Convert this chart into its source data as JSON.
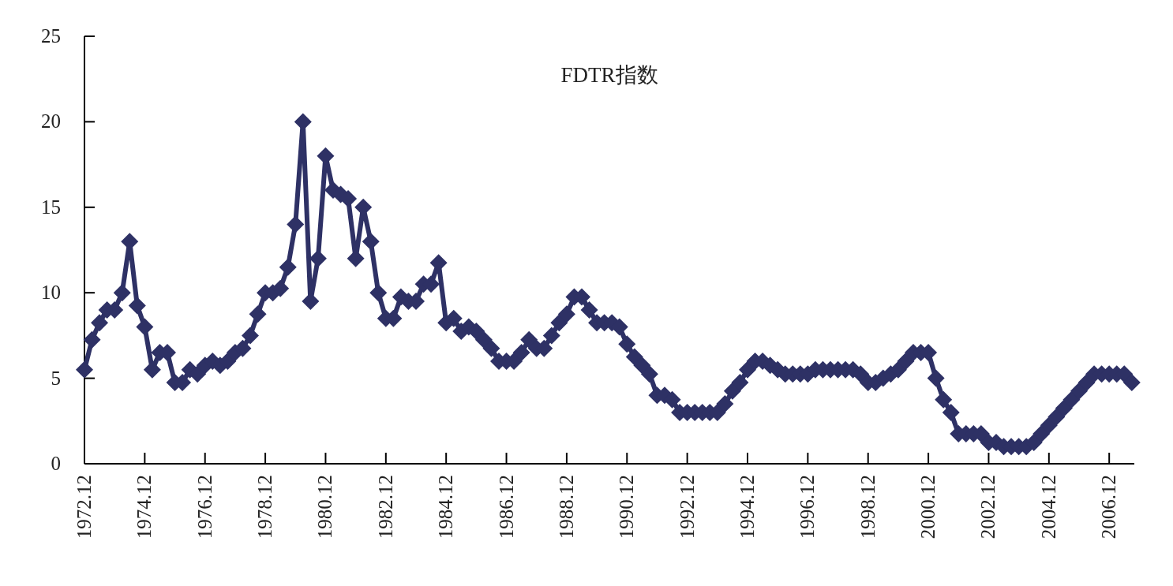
{
  "chart_data": {
    "type": "line",
    "title": "FDTR指数",
    "x": [
      "1972-12",
      "1973-03",
      "1973-06",
      "1973-09",
      "1973-12",
      "1974-03",
      "1974-06",
      "1974-09",
      "1974-12",
      "1975-03",
      "1975-06",
      "1975-09",
      "1975-12",
      "1976-03",
      "1976-06",
      "1976-09",
      "1976-12",
      "1977-03",
      "1977-06",
      "1977-09",
      "1977-12",
      "1978-03",
      "1978-06",
      "1978-09",
      "1978-12",
      "1979-03",
      "1979-06",
      "1979-09",
      "1979-12",
      "1980-03",
      "1980-06",
      "1980-09",
      "1980-12",
      "1981-03",
      "1981-06",
      "1981-09",
      "1981-12",
      "1982-03",
      "1982-06",
      "1982-09",
      "1982-12",
      "1983-03",
      "1983-06",
      "1983-09",
      "1983-12",
      "1984-03",
      "1984-06",
      "1984-09",
      "1984-12",
      "1985-03",
      "1985-06",
      "1985-09",
      "1985-12",
      "1986-03",
      "1986-06",
      "1986-09",
      "1986-12",
      "1987-03",
      "1987-06",
      "1987-09",
      "1987-12",
      "1988-03",
      "1988-06",
      "1988-09",
      "1988-12",
      "1989-03",
      "1989-06",
      "1989-09",
      "1989-12",
      "1990-03",
      "1990-06",
      "1990-09",
      "1990-12",
      "1991-03",
      "1991-06",
      "1991-09",
      "1991-12",
      "1992-03",
      "1992-06",
      "1992-09",
      "1992-12",
      "1993-03",
      "1993-06",
      "1993-09",
      "1993-12",
      "1994-03",
      "1994-06",
      "1994-09",
      "1994-12",
      "1995-03",
      "1995-06",
      "1995-09",
      "1995-12",
      "1996-03",
      "1996-06",
      "1996-09",
      "1996-12",
      "1997-03",
      "1997-06",
      "1997-09",
      "1997-12",
      "1998-03",
      "1998-06",
      "1998-09",
      "1998-12",
      "1999-03",
      "1999-06",
      "1999-09",
      "1999-12",
      "2000-03",
      "2000-06",
      "2000-09",
      "2000-12",
      "2001-03",
      "2001-06",
      "2001-09",
      "2001-12",
      "2002-03",
      "2002-06",
      "2002-09",
      "2002-12",
      "2003-03",
      "2003-06",
      "2003-09",
      "2003-12",
      "2004-03",
      "2004-06",
      "2004-09",
      "2004-12",
      "2005-03",
      "2005-06",
      "2005-09",
      "2005-12",
      "2006-03",
      "2006-06",
      "2006-09",
      "2006-12",
      "2007-03",
      "2007-06",
      "2007-09"
    ],
    "values": [
      5.5,
      7.25,
      8.25,
      9.0,
      9.0,
      10.0,
      13.0,
      9.25,
      8.0,
      5.5,
      6.5,
      6.5,
      4.75,
      4.75,
      5.5,
      5.25,
      5.75,
      6.0,
      5.75,
      6.0,
      6.5,
      6.75,
      7.5,
      8.75,
      10.0,
      10.0,
      10.25,
      11.5,
      14.0,
      20.0,
      9.5,
      12.0,
      18.0,
      16.0,
      15.75,
      15.5,
      12.0,
      15.0,
      13.0,
      10.0,
      8.5,
      8.5,
      9.75,
      9.5,
      9.5,
      10.5,
      10.5,
      11.75,
      8.25,
      8.5,
      7.75,
      8.0,
      7.75,
      7.25,
      6.75,
      6.0,
      6.0,
      6.0,
      6.5,
      7.25,
      6.75,
      6.75,
      7.5,
      8.25,
      8.75,
      9.75,
      9.75,
      9.0,
      8.25,
      8.25,
      8.25,
      8.0,
      7.0,
      6.25,
      5.75,
      5.25,
      4.0,
      4.0,
      3.75,
      3.0,
      3.0,
      3.0,
      3.0,
      3.0,
      3.0,
      3.5,
      4.25,
      4.75,
      5.5,
      6.0,
      6.0,
      5.75,
      5.5,
      5.25,
      5.25,
      5.25,
      5.25,
      5.5,
      5.5,
      5.5,
      5.5,
      5.5,
      5.5,
      5.25,
      4.75,
      4.75,
      5.0,
      5.25,
      5.5,
      6.0,
      6.5,
      6.5,
      6.5,
      5.0,
      3.75,
      3.0,
      1.75,
      1.75,
      1.75,
      1.75,
      1.25,
      1.25,
      1.0,
      1.0,
      1.0,
      1.0,
      1.25,
      1.75,
      2.25,
      2.75,
      3.25,
      3.75,
      4.25,
      4.75,
      5.25,
      5.25,
      5.25,
      5.25,
      5.25,
      4.75
    ],
    "color": "#2e3165",
    "marker": "diamond",
    "line_style": "solid",
    "xlim": [
      "1972-12",
      "2007-10"
    ],
    "xticks": [
      {
        "value": "1972-12",
        "label": "1972.12"
      },
      {
        "value": "1974-12",
        "label": "1974.12"
      },
      {
        "value": "1976-12",
        "label": "1976.12"
      },
      {
        "value": "1978-12",
        "label": "1978.12"
      },
      {
        "value": "1980-12",
        "label": "1980.12"
      },
      {
        "value": "1982-12",
        "label": "1982.12"
      },
      {
        "value": "1984-12",
        "label": "1984.12"
      },
      {
        "value": "1986-12",
        "label": "1986.12"
      },
      {
        "value": "1988-12",
        "label": "1988.12"
      },
      {
        "value": "1990-12",
        "label": "1990.12"
      },
      {
        "value": "1992-12",
        "label": "1992.12"
      },
      {
        "value": "1994-12",
        "label": "1994.12"
      },
      {
        "value": "1996-12",
        "label": "1996.12"
      },
      {
        "value": "1998-12",
        "label": "1998.12"
      },
      {
        "value": "2000-12",
        "label": "2000.12"
      },
      {
        "value": "2002-12",
        "label": "2002.12"
      },
      {
        "value": "2004-12",
        "label": "2004.12"
      },
      {
        "value": "2006-12",
        "label": "2006.12"
      }
    ],
    "ylim": [
      0,
      25
    ],
    "yticks": [
      0,
      5,
      10,
      15,
      20,
      25
    ],
    "grid": false,
    "legend": false
  }
}
